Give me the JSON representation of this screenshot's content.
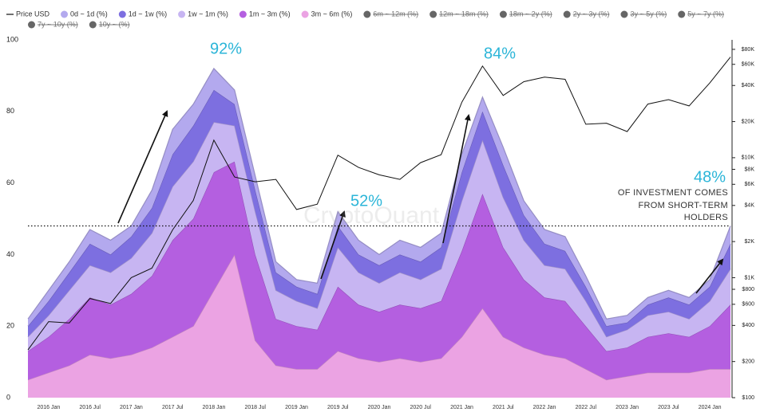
{
  "chart_data": {
    "type": "area",
    "categories": [
      null,
      "2016 Jan",
      null,
      "2016 Jul",
      null,
      "2017 Jan",
      null,
      "2017 Jul",
      null,
      "2018 Jan",
      null,
      "2018 Jul",
      null,
      "2019 Jan",
      null,
      "2019 Jul",
      null,
      "2020 Jan",
      null,
      "2020 Jul",
      null,
      "2021 Jan",
      null,
      "2021 Jul",
      null,
      "2022 Jan",
      null,
      "2022 Jul",
      null,
      "2023 Jan",
      null,
      "2023 Jul",
      null,
      "2024 Jan",
      null
    ],
    "series": [
      {
        "name": "Price USD",
        "type": "line",
        "axis": "y2",
        "color": "#111111",
        "values": [
          250,
          430,
          420,
          670,
          610,
          1000,
          1200,
          2500,
          4400,
          14000,
          6900,
          6300,
          6600,
          3700,
          4100,
          10500,
          8300,
          7200,
          6600,
          9100,
          10600,
          29000,
          58000,
          33000,
          43000,
          47000,
          45000,
          19000,
          19400,
          16500,
          28000,
          30500,
          27000,
          42000,
          69000
        ]
      },
      {
        "name": "0d ~ 1d (%)",
        "color": "#b3a9ee",
        "values": [
          2,
          3,
          3,
          4,
          4,
          3,
          5,
          7,
          6,
          6,
          4,
          4,
          3,
          2,
          3,
          4,
          4,
          3,
          4,
          4,
          4,
          5,
          4,
          5,
          4,
          4,
          4,
          3,
          2,
          2,
          2,
          2,
          2,
          2,
          5
        ]
      },
      {
        "name": "1d ~ 1w (%)",
        "color": "#7d6fe0",
        "values": [
          3,
          4,
          5,
          6,
          5,
          6,
          7,
          9,
          10,
          9,
          6,
          6,
          5,
          4,
          4,
          6,
          5,
          5,
          5,
          5,
          6,
          8,
          8,
          9,
          7,
          6,
          5,
          4,
          3,
          2,
          3,
          4,
          4,
          4,
          7
        ]
      },
      {
        "name": "1w ~ 1m (%)",
        "color": "#c7b5f2",
        "values": [
          4,
          6,
          8,
          9,
          9,
          10,
          12,
          15,
          16,
          14,
          10,
          12,
          8,
          7,
          6,
          11,
          9,
          8,
          9,
          8,
          9,
          14,
          15,
          14,
          11,
          9,
          9,
          7,
          4,
          5,
          6,
          6,
          5,
          7,
          10
        ]
      },
      {
        "name": "1m ~ 3m (%)",
        "color": "#b45fe0",
        "values": [
          8,
          10,
          13,
          16,
          15,
          17,
          20,
          27,
          30,
          33,
          26,
          24,
          13,
          12,
          11,
          18,
          15,
          14,
          15,
          15,
          16,
          24,
          32,
          25,
          19,
          16,
          16,
          12,
          8,
          8,
          10,
          11,
          10,
          12,
          18
        ]
      },
      {
        "name": "3m ~ 6m (%)",
        "color": "#eba3e3",
        "values": [
          5,
          7,
          9,
          12,
          11,
          12,
          14,
          17,
          20,
          30,
          40,
          16,
          9,
          8,
          8,
          13,
          11,
          10,
          11,
          10,
          11,
          17,
          25,
          17,
          14,
          12,
          11,
          8,
          5,
          6,
          7,
          7,
          7,
          8,
          8
        ]
      }
    ],
    "hidden_series": [
      {
        "name": "6m ~ 12m (%)",
        "color": "#666666"
      },
      {
        "name": "12m ~ 18m (%)",
        "color": "#666666"
      },
      {
        "name": "18m ~ 2y (%)",
        "color": "#666666"
      },
      {
        "name": "2y ~ 3y (%)",
        "color": "#666666"
      },
      {
        "name": "3y ~ 5y (%)",
        "color": "#666666"
      },
      {
        "name": "5y ~ 7y (%)",
        "color": "#666666"
      },
      {
        "name": "7y ~ 10y (%)",
        "color": "#666666"
      },
      {
        "name": "10y ~ (%)",
        "color": "#666666"
      }
    ],
    "ylim": [
      0,
      100
    ],
    "yticks": [
      0,
      20,
      40,
      60,
      80,
      100
    ],
    "y2scale": "log",
    "y2lim": [
      100,
      96000
    ],
    "y2ticks": [
      {
        "value": 100,
        "label": "$100"
      },
      {
        "value": 200,
        "label": "$200"
      },
      {
        "value": 400,
        "label": "$400"
      },
      {
        "value": 600,
        "label": "$600"
      },
      {
        "value": 800,
        "label": "$800"
      },
      {
        "value": 1000,
        "label": "$1K"
      },
      {
        "value": 2000,
        "label": "$2K"
      },
      {
        "value": 4000,
        "label": "$4K"
      },
      {
        "value": 6000,
        "label": "$6K"
      },
      {
        "value": 8000,
        "label": "$8K"
      },
      {
        "value": 10000,
        "label": "$10K"
      },
      {
        "value": 20000,
        "label": "$20K"
      },
      {
        "value": 40000,
        "label": "$40K"
      },
      {
        "value": 60000,
        "label": "$60K"
      },
      {
        "value": 80000,
        "label": "$80K"
      }
    ],
    "grid": false,
    "reference_line": 48,
    "legend": "top-left",
    "watermark": "CryptoQuant",
    "annotations": [
      "92%",
      "52%",
      "84%",
      "48%",
      "OF INVESTMENT COMES",
      "FROM SHORT-TERM",
      "HOLDERS"
    ]
  }
}
